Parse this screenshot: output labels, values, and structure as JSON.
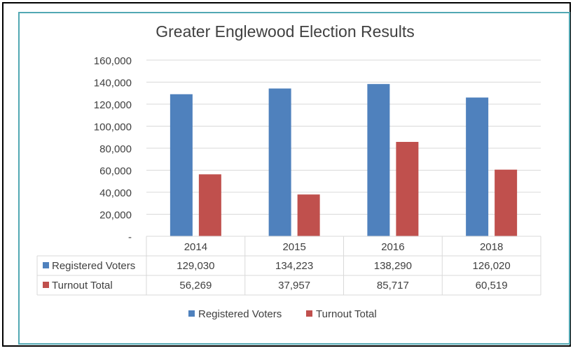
{
  "chart_data": {
    "type": "bar",
    "title": "Greater Englewood Election Results",
    "categories": [
      "2014",
      "2015",
      "2016",
      "2018"
    ],
    "series": [
      {
        "name": "Registered Voters",
        "color": "#4f81bd",
        "values": [
          129030,
          134223,
          138290,
          126020
        ],
        "labels": [
          "129,030",
          "134,223",
          "138,290",
          "126,020"
        ]
      },
      {
        "name": "Turnout Total",
        "color": "#c0504d",
        "values": [
          56269,
          37957,
          85717,
          60519
        ],
        "labels": [
          "56,269",
          "37,957",
          "85,717",
          "60,519"
        ]
      }
    ],
    "ylim": [
      0,
      160000
    ],
    "yticks": [
      0,
      20000,
      40000,
      60000,
      80000,
      100000,
      120000,
      140000,
      160000
    ],
    "ytick_labels": [
      "-",
      "20,000",
      "40,000",
      "60,000",
      "80,000",
      "100,000",
      "120,000",
      "140,000",
      "160,000"
    ],
    "grid": true,
    "legend": "bottom",
    "data_table": true,
    "frame_color": "#52a8b3"
  }
}
